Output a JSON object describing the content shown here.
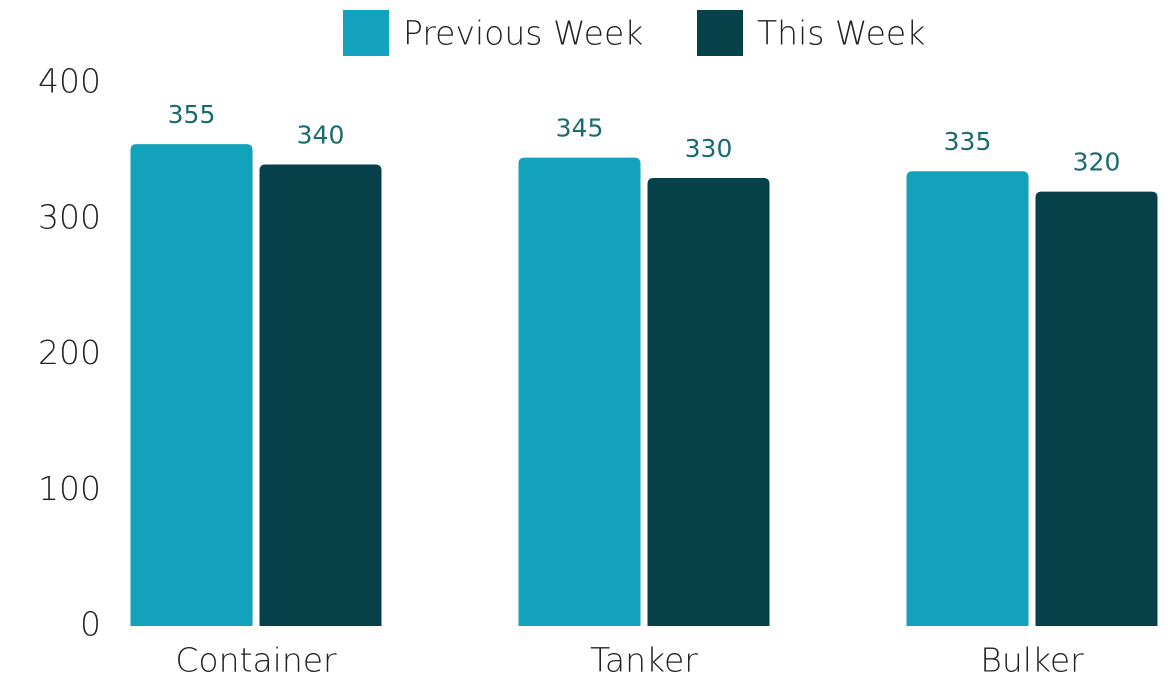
{
  "chart_data": {
    "type": "bar",
    "categories": [
      "Container",
      "Tanker",
      "Bulker"
    ],
    "series": [
      {
        "name": "Previous Week",
        "color": "#13a2bb",
        "values": [
          355,
          345,
          335
        ]
      },
      {
        "name": "This Week",
        "color": "#06414a",
        "values": [
          340,
          330,
          320
        ]
      }
    ],
    "ylim": [
      0,
      400
    ],
    "yticks": [
      0,
      100,
      200,
      300,
      400
    ],
    "grid": false,
    "legend": "top"
  }
}
